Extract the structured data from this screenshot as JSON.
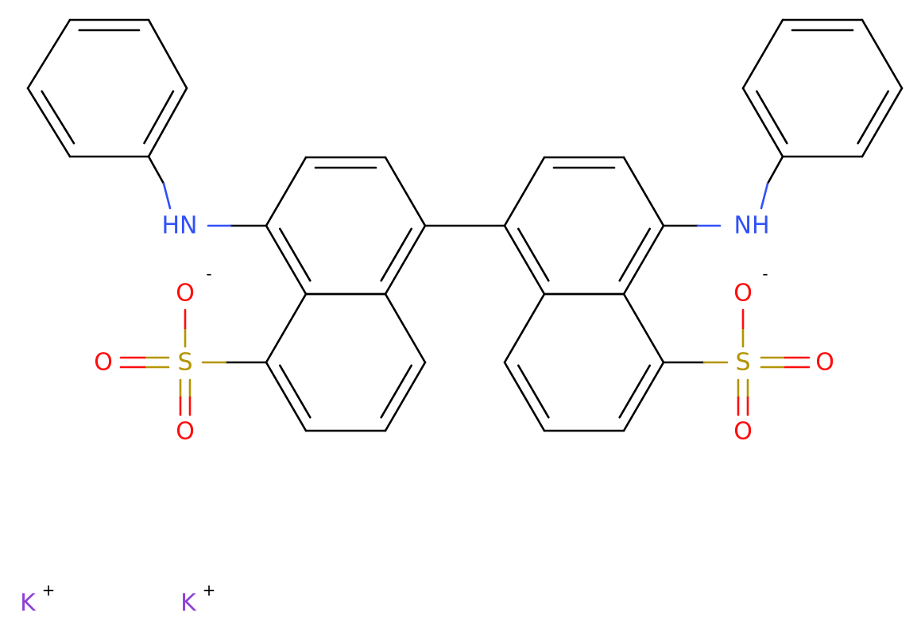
{
  "atoms": [
    {
      "element": "HN"
    },
    {
      "element": "NH"
    },
    {
      "element": "S"
    },
    {
      "element": "O",
      "charge": "-"
    },
    {
      "element": "O"
    },
    {
      "element": "O"
    },
    {
      "element": "S"
    },
    {
      "element": "O",
      "charge": "-"
    },
    {
      "element": "O"
    },
    {
      "element": "O"
    },
    {
      "element": "K",
      "charge": "+"
    },
    {
      "element": "K",
      "charge": "+"
    }
  ]
}
